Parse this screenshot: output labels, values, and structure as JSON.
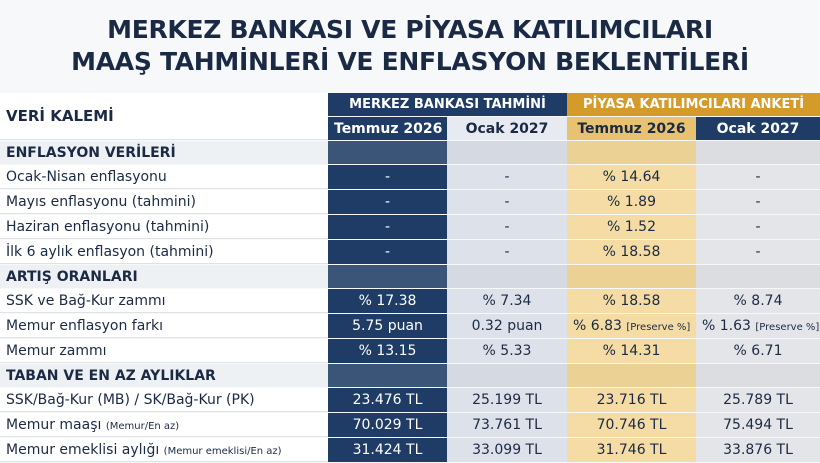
{
  "header": {
    "title_lines": [
      "MERKEZ BANKASI VE PİYASA KATILIMCILARI",
      "MAAŞ TAHMİNLERİ VE ENFLASYON BEKLENTİLERİ"
    ]
  },
  "table": {
    "row_header": "VERİ KALEMİ",
    "groups": [
      "MERKEZ BANKASI TAHMİNİ",
      "PİYASA KATILIMCILARI ANKETİ"
    ],
    "columns": [
      "Temmuz 2026",
      "Ocak 2027",
      "Temmuz 2026",
      "Ocak 2027"
    ],
    "sections": [
      {
        "title": "ENFLASYON VERİLERİ",
        "rows": [
          {
            "label": "Ocak-Nisan enflasyonu",
            "cells": [
              "-",
              "-",
              "% 14.64",
              "-"
            ]
          },
          {
            "label": "Mayıs enflasyonu (tahmini)",
            "cells": [
              "-",
              "-",
              "% 1.89",
              "-"
            ]
          },
          {
            "label": "Haziran enflasyonu (tahmini)",
            "cells": [
              "-",
              "-",
              "% 1.52",
              "-"
            ]
          },
          {
            "label": "İlk 6 aylık enflasyon (tahmini)",
            "cells": [
              "-",
              "-",
              "% 18.58",
              "-"
            ]
          }
        ]
      },
      {
        "title": "ARTIŞ ORANLARI",
        "rows": [
          {
            "label": "SSK ve Bağ-Kur zammı",
            "cells": [
              "% 17.38",
              "% 7.34",
              "% 18.58",
              "% 8.74"
            ]
          },
          {
            "label": "Memur enflasyon farkı",
            "cells": [
              "5.75 puan",
              "0.32 puan",
              {
                "text": "% 6.83",
                "note": "[Preserve %]"
              },
              {
                "text": "% 1.63",
                "note": "[Preserve %]"
              }
            ]
          },
          {
            "label": "Memur zammı",
            "cells": [
              "% 13.15",
              "% 5.33",
              "% 14.31",
              "% 6.71"
            ]
          }
        ]
      },
      {
        "title": "TABAN VE EN AZ AYLIKLAR",
        "rows": [
          {
            "label": "SSK/Bağ-Kur (MB) / SK/Bağ-Kur (PK)",
            "cells": [
              "23.476 TL",
              "25.199 TL",
              "23.716 TL",
              "25.789 TL"
            ]
          },
          {
            "label": "Memur maaşı",
            "note": "(Memur/En az)",
            "cells": [
              "70.029 TL",
              "73.761 TL",
              "70.746 TL",
              "75.494 TL"
            ]
          },
          {
            "label": "Memur emeklisi aylığı",
            "note": "(Memur emeklisi/En az)",
            "cells": [
              "31.424 TL",
              "33.099 TL",
              "31.746 TL",
              "33.876 TL"
            ]
          }
        ]
      }
    ]
  }
}
